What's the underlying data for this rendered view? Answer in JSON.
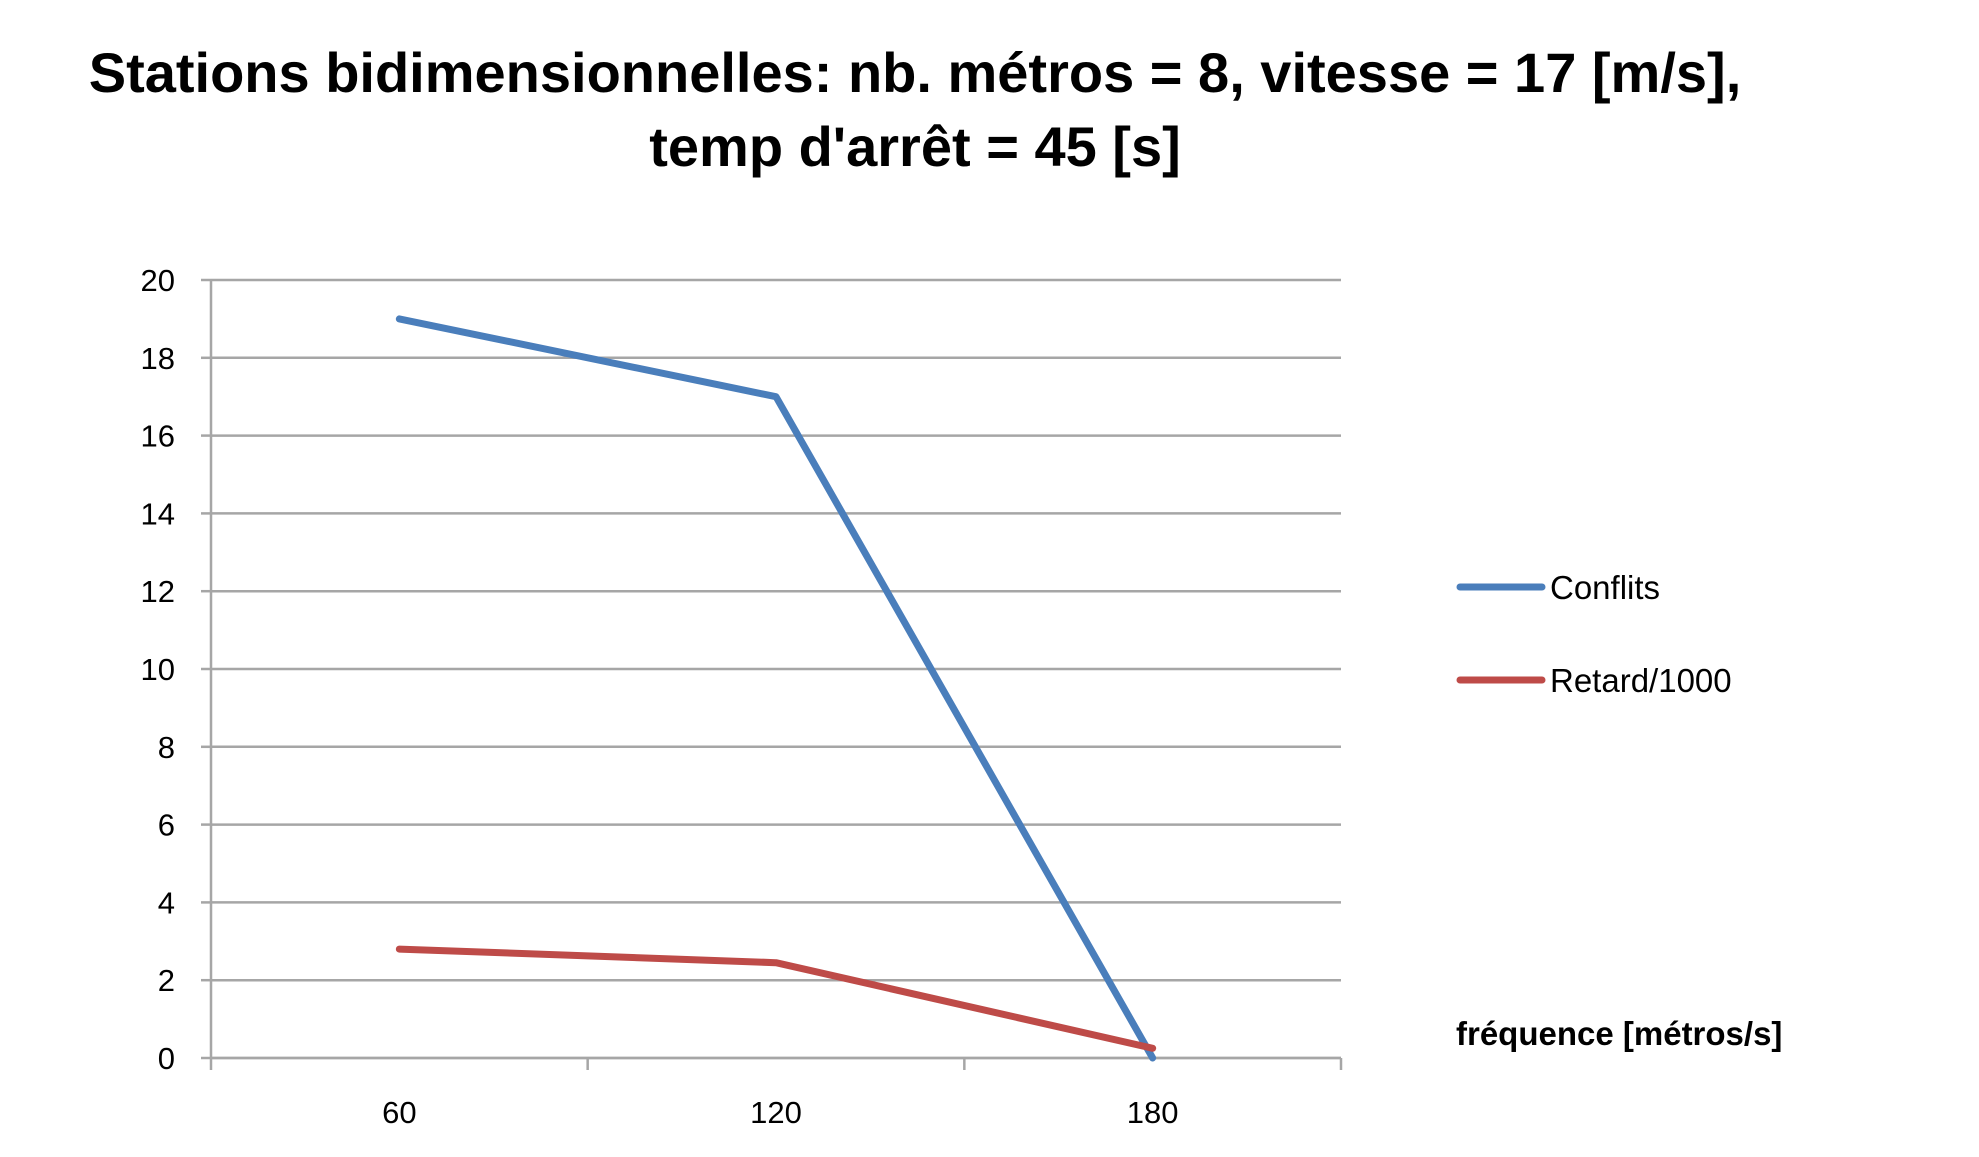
{
  "chart_data": {
    "type": "line",
    "title": "Stations bidimensionnelles: nb. métros = 8, vitesse = 17 [m/s], temp d'arrêt = 45 [s]",
    "xlabel": "fréquence [métros/s]",
    "ylabel": "",
    "categories": [
      "60",
      "120",
      "180"
    ],
    "ylim": [
      0,
      20
    ],
    "yticks": [
      0,
      2,
      4,
      6,
      8,
      10,
      12,
      14,
      16,
      18,
      20
    ],
    "grid": true,
    "legend_position": "right",
    "series": [
      {
        "name": "Conflits",
        "values": [
          19,
          17,
          0
        ],
        "color": "#4A7EBB"
      },
      {
        "name": "Retard/1000",
        "values": [
          2.8,
          2.45,
          0.25
        ],
        "color": "#BE4B48"
      }
    ]
  }
}
